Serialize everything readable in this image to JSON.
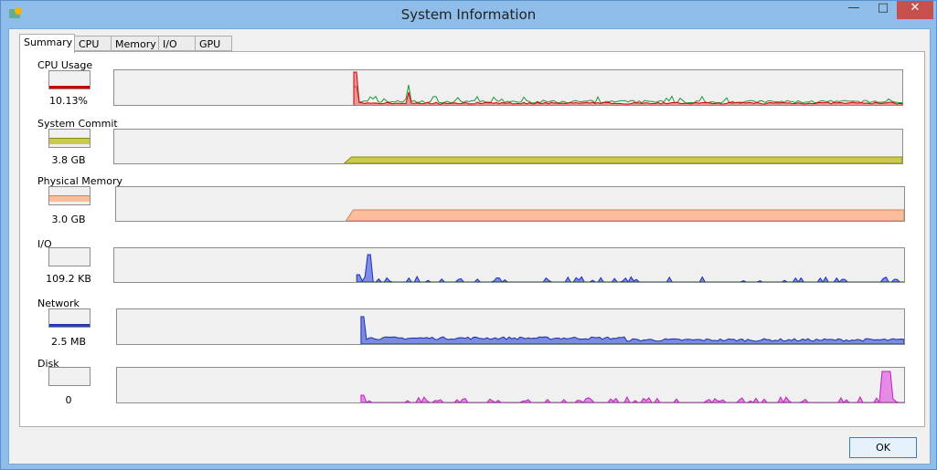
{
  "window": {
    "title": "System Information",
    "button": "OK"
  },
  "tabs": [
    "Summary",
    "CPU",
    "Memory",
    "I/O",
    "GPU"
  ],
  "sections": [
    {
      "label": "CPU Usage",
      "value": "10.13%"
    },
    {
      "label": "System Commit",
      "value": "3.8 GB"
    },
    {
      "label": "Physical Memory",
      "value": "3.0 GB"
    },
    {
      "label": "I/O",
      "value": "109.2  KB"
    },
    {
      "label": "Network",
      "value": "2.5  MB"
    },
    {
      "label": "Disk",
      "value": "0"
    }
  ]
}
